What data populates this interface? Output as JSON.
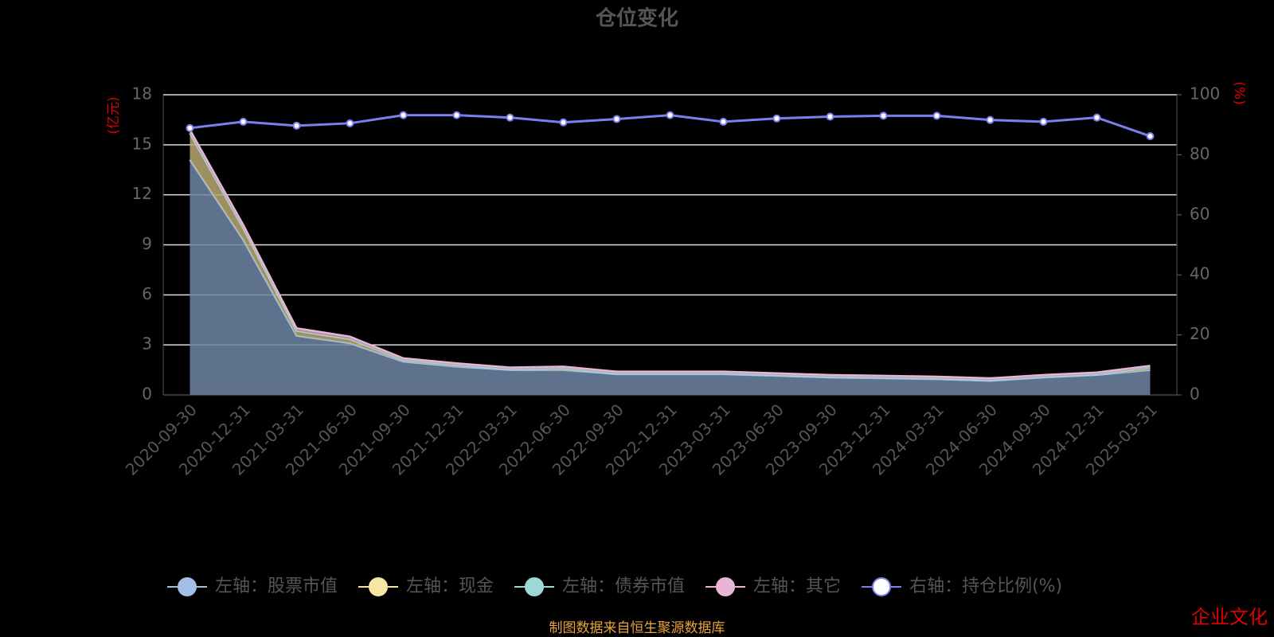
{
  "chart_data": {
    "type": "stacked-area-line",
    "title": "仓位变化",
    "y_axis_label": "(亿元)",
    "y2_axis_label": "(%)",
    "categories": [
      "2020-09-30",
      "2020-12-31",
      "2021-03-31",
      "2021-06-30",
      "2021-09-30",
      "2021-12-31",
      "2022-03-31",
      "2022-06-30",
      "2022-09-30",
      "2022-12-31",
      "2023-03-31",
      "2023-06-30",
      "2023-09-30",
      "2023-12-31",
      "2024-03-31",
      "2024-06-30",
      "2024-09-30",
      "2024-12-31",
      "2025-03-31"
    ],
    "ylim": [
      0,
      18
    ],
    "yticks": [
      0,
      3,
      6,
      9,
      12,
      15,
      18
    ],
    "y2lim": [
      0,
      100
    ],
    "y2ticks": [
      0,
      20,
      40,
      60,
      80,
      100
    ],
    "grid": true,
    "series": [
      {
        "name": "左轴：股票市值",
        "color": "#a4bfe6",
        "fill": "#6e86a6",
        "values": [
          14.1,
          9.3,
          3.55,
          3.1,
          2.0,
          1.7,
          1.5,
          1.5,
          1.25,
          1.25,
          1.25,
          1.15,
          1.05,
          1.0,
          0.95,
          0.85,
          1.05,
          1.2,
          1.5
        ]
      },
      {
        "name": "左轴：现金",
        "color": "#f7e6a2",
        "fill": "#b8a870",
        "values": [
          1.6,
          0.7,
          0.3,
          0.25,
          0.1,
          0.1,
          0.05,
          0.1,
          0.05,
          0.05,
          0.05,
          0.05,
          0.05,
          0.05,
          0.05,
          0.05,
          0.05,
          0.05,
          0.15
        ]
      },
      {
        "name": "左轴：债券市值",
        "color": "#9cd8d6",
        "fill": "#9cd8d6",
        "values": [
          0,
          0,
          0,
          0,
          0,
          0,
          0,
          0,
          0,
          0,
          0,
          0,
          0,
          0,
          0,
          0,
          0,
          0,
          0
        ]
      },
      {
        "name": "左轴：其它",
        "color": "#e8b5d4",
        "fill": "#c08aa8",
        "values": [
          0.2,
          0.2,
          0.15,
          0.15,
          0.1,
          0.1,
          0.1,
          0.1,
          0.1,
          0.1,
          0.1,
          0.1,
          0.1,
          0.1,
          0.1,
          0.1,
          0.1,
          0.1,
          0.1
        ]
      },
      {
        "name": "右轴：持仓比例(%)",
        "color": "#7b7ff0",
        "axis": "y2",
        "values": [
          88.9,
          91.0,
          89.7,
          90.5,
          93.2,
          93.2,
          92.4,
          90.8,
          91.9,
          93.2,
          91.0,
          92.1,
          92.7,
          93.0,
          93.0,
          91.6,
          91.0,
          92.4,
          86.2
        ]
      }
    ],
    "source": "制图数据来自恒生聚源数据库",
    "watermark": "企业文化"
  }
}
